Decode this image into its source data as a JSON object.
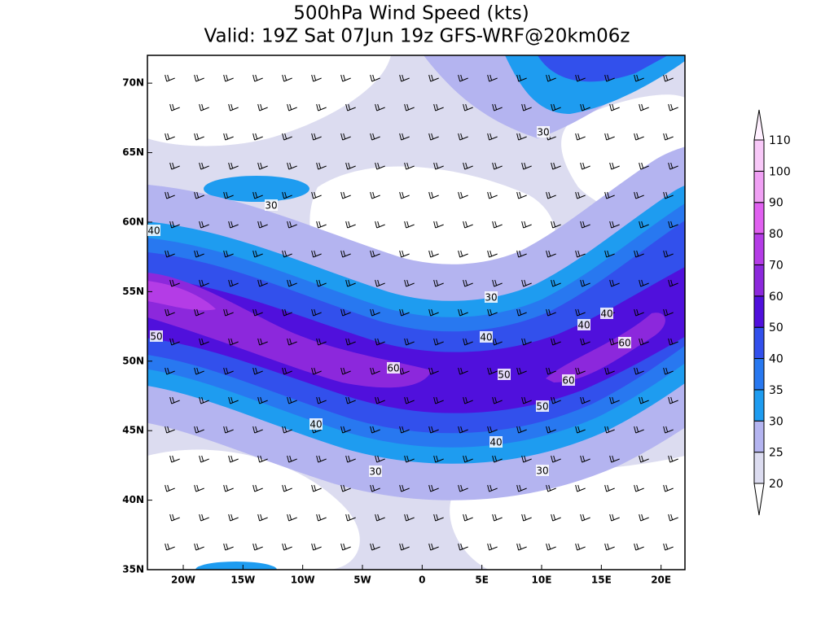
{
  "title": {
    "line1": "500hPa Wind Speed (kts)",
    "line2": "Valid: 19Z Sat 07Jun 19z GFS-WRF@20km06z"
  },
  "map": {
    "lon_range": [
      -23,
      22
    ],
    "lat_range": [
      35,
      72
    ],
    "lon_ticks": [
      {
        "value": -20,
        "label": "20W"
      },
      {
        "value": -15,
        "label": "15W"
      },
      {
        "value": -10,
        "label": "10W"
      },
      {
        "value": -5,
        "label": "5W"
      },
      0,
      {
        "value": 5,
        "label": "5E"
      },
      {
        "value": 10,
        "label": "10E"
      },
      {
        "value": 15,
        "label": "15E"
      },
      {
        "value": 20,
        "label": "20E"
      }
    ],
    "lat_ticks": [
      {
        "value": 35,
        "label": "35N"
      },
      {
        "value": 40,
        "label": "40N"
      },
      {
        "value": 45,
        "label": "45N"
      },
      {
        "value": 50,
        "label": "50N"
      },
      {
        "value": 55,
        "label": "55N"
      },
      {
        "value": 60,
        "label": "60N"
      },
      {
        "value": 65,
        "label": "65N"
      },
      {
        "value": 70,
        "label": "70N"
      }
    ],
    "contour_labels": [
      30,
      30,
      40,
      50,
      30,
      40,
      40,
      40,
      60,
      60,
      50,
      60,
      50,
      40,
      40,
      30,
      30
    ]
  },
  "colorbar": {
    "levels": [
      20,
      25,
      30,
      35,
      40,
      50,
      60,
      70,
      80,
      90,
      100,
      110
    ],
    "colors": [
      "#ffffff",
      "#dcdcf0",
      "#b4b4f0",
      "#1e9cf0",
      "#2878f0",
      "#3250ec",
      "#5010dc",
      "#8c28dc",
      "#b43ce6",
      "#e060f0",
      "#f0a0f4",
      "#f8c8f8",
      "#fff0ff"
    ]
  }
}
